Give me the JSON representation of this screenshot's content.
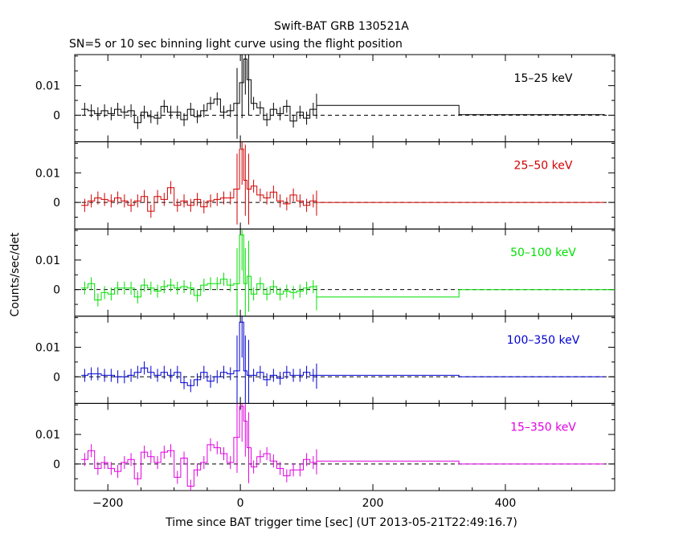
{
  "chart_data": {
    "type": "line",
    "title": "Swift-BAT GRB 130521A",
    "subtitle": "SN=5 or 10 sec binning light curve using the flight position",
    "xlabel": "Time since BAT trigger time [sec] (UT 2013-05-21T22:49:16.7)",
    "ylabel": "Counts/sec/det",
    "xlim": [
      -250,
      565
    ],
    "x_ticks": [
      -200,
      0,
      200,
      400
    ],
    "x_tick_labels": [
      "−200",
      "0",
      "200",
      "400"
    ],
    "grid": false,
    "panels": [
      {
        "band": "15–25 keV",
        "color": "#000000",
        "ylim": [
          -0.009,
          0.0205
        ],
        "y_ticks": [
          0,
          0.01
        ],
        "y_tick_labels": [
          "0",
          "0.01"
        ],
        "points": [
          [
            -235,
            0.002
          ],
          [
            -225,
            0.0015
          ],
          [
            -215,
            0.0005
          ],
          [
            -205,
            0.0015
          ],
          [
            -195,
            0.0005
          ],
          [
            -185,
            0.002
          ],
          [
            -175,
            0.001
          ],
          [
            -165,
            0.0015
          ],
          [
            -155,
            -0.0025
          ],
          [
            -145,
            0.001
          ],
          [
            -135,
            -0.0005
          ],
          [
            -125,
            -0.001
          ],
          [
            -115,
            0.003
          ],
          [
            -105,
            0.001
          ],
          [
            -95,
            0.001
          ],
          [
            -85,
            -0.0015
          ],
          [
            -75,
            0.002
          ],
          [
            -65,
            -0.0005
          ],
          [
            -55,
            0.0015
          ],
          [
            -45,
            0.004
          ],
          [
            -35,
            0.0055
          ],
          [
            -25,
            0.001
          ],
          [
            -15,
            0.0015
          ],
          [
            -5,
            0.004
          ],
          [
            2.5,
            0.011
          ],
          [
            7.5,
            0.019
          ],
          [
            12.5,
            0.012
          ],
          [
            20,
            0.004
          ],
          [
            30,
            0.0025
          ],
          [
            40,
            -0.0015
          ],
          [
            50,
            0.002
          ],
          [
            60,
            0.0005
          ],
          [
            70,
            0.003
          ],
          [
            80,
            -0.002
          ],
          [
            90,
            0.001
          ],
          [
            100,
            -0.001
          ],
          [
            110,
            0.002
          ]
        ],
        "long_bins": [
          [
            115,
            330,
            0.0033
          ],
          [
            330,
            550,
            0.0002
          ]
        ]
      },
      {
        "band": "25–50 keV",
        "color": "#d00000",
        "ylim": [
          -0.009,
          0.0205
        ],
        "y_ticks": [
          0,
          0.01
        ],
        "y_tick_labels": [
          "0",
          "0.01"
        ],
        "points": [
          [
            -235,
            -0.001
          ],
          [
            -225,
            0.0005
          ],
          [
            -215,
            0.0015
          ],
          [
            -205,
            0.001
          ],
          [
            -195,
            0.0005
          ],
          [
            -185,
            0.0015
          ],
          [
            -175,
            0.0005
          ],
          [
            -165,
            -0.001
          ],
          [
            -155,
            0.0005
          ],
          [
            -145,
            0.002
          ],
          [
            -135,
            -0.003
          ],
          [
            -125,
            0.002
          ],
          [
            -115,
            0.001
          ],
          [
            -105,
            0.005
          ],
          [
            -95,
            -0.001
          ],
          [
            -85,
            0.0005
          ],
          [
            -75,
            -0.001
          ],
          [
            -65,
            0.001
          ],
          [
            -55,
            -0.0015
          ],
          [
            -45,
            0.0005
          ],
          [
            -35,
            0.001
          ],
          [
            -25,
            0.0015
          ],
          [
            -15,
            0.0015
          ],
          [
            -5,
            0.0045
          ],
          [
            2.5,
            0.018
          ],
          [
            7.5,
            0.0075
          ],
          [
            12.5,
            0.0045
          ],
          [
            20,
            0.0055
          ],
          [
            30,
            0.0025
          ],
          [
            40,
            0.0015
          ],
          [
            50,
            0.0035
          ],
          [
            60,
            0.0005
          ],
          [
            70,
            -0.0005
          ],
          [
            80,
            0.0025
          ],
          [
            90,
            0.0005
          ],
          [
            100,
            -0.001
          ],
          [
            110,
            0.0005
          ]
        ],
        "long_bins": [
          [
            115,
            330,
            0.0
          ],
          [
            330,
            550,
            0.0
          ]
        ]
      },
      {
        "band": "50–100 keV",
        "color": "#00e000",
        "ylim": [
          -0.009,
          0.0205
        ],
        "y_ticks": [
          0,
          0.01
        ],
        "y_tick_labels": [
          "0",
          "0.01"
        ],
        "points": [
          [
            -235,
            0.0005
          ],
          [
            -225,
            0.002
          ],
          [
            -215,
            -0.0035
          ],
          [
            -205,
            -0.001
          ],
          [
            -195,
            -0.0015
          ],
          [
            -185,
            0.0005
          ],
          [
            -175,
            0.0005
          ],
          [
            -165,
            0.0005
          ],
          [
            -155,
            -0.0025
          ],
          [
            -145,
            0.0015
          ],
          [
            -135,
            0.0005
          ],
          [
            -125,
            -0.0005
          ],
          [
            -115,
            0.001
          ],
          [
            -105,
            0.0015
          ],
          [
            -95,
            0.0005
          ],
          [
            -85,
            0.001
          ],
          [
            -75,
            0.0005
          ],
          [
            -65,
            -0.002
          ],
          [
            -55,
            0.0015
          ],
          [
            -45,
            0.002
          ],
          [
            -35,
            0.002
          ],
          [
            -25,
            0.0035
          ],
          [
            -15,
            0.0015
          ],
          [
            -5,
            0.002
          ],
          [
            2.5,
            0.0185
          ],
          [
            7.5,
            0.002
          ],
          [
            12.5,
            0.0045
          ],
          [
            20,
            -0.0015
          ],
          [
            30,
            0.002
          ],
          [
            40,
            -0.0015
          ],
          [
            50,
            0.001
          ],
          [
            60,
            -0.0015
          ],
          [
            70,
            -0.0005
          ],
          [
            80,
            -0.001
          ],
          [
            90,
            -0.0005
          ],
          [
            100,
            0.0005
          ],
          [
            110,
            0.001
          ]
        ],
        "long_bins": [
          [
            115,
            330,
            -0.0025
          ],
          [
            330,
            565,
            0.0
          ]
        ]
      },
      {
        "band": "100–350 keV",
        "color": "#0000d0",
        "ylim": [
          -0.009,
          0.0205
        ],
        "y_ticks": [
          0,
          0.01
        ],
        "y_tick_labels": [
          "0",
          "0.01"
        ],
        "points": [
          [
            -235,
            0.0005
          ],
          [
            -225,
            0.001
          ],
          [
            -215,
            0.001
          ],
          [
            -205,
            0.0005
          ],
          [
            -195,
            0.0005
          ],
          [
            -185,
            0.0
          ],
          [
            -175,
            0.0
          ],
          [
            -165,
            0.0005
          ],
          [
            -155,
            0.0015
          ],
          [
            -145,
            0.003
          ],
          [
            -135,
            0.0015
          ],
          [
            -125,
            0.0005
          ],
          [
            -115,
            0.0015
          ],
          [
            -105,
            0.0005
          ],
          [
            -95,
            0.0015
          ],
          [
            -85,
            -0.002
          ],
          [
            -75,
            -0.003
          ],
          [
            -65,
            -0.001
          ],
          [
            -55,
            0.0015
          ],
          [
            -45,
            -0.0015
          ],
          [
            -35,
            0.0
          ],
          [
            -25,
            0.0015
          ],
          [
            -15,
            0.001
          ],
          [
            -5,
            0.002
          ],
          [
            2.5,
            0.0185
          ],
          [
            7.5,
            0.002
          ],
          [
            12.5,
            0.0005
          ],
          [
            20,
            0.0005
          ],
          [
            30,
            0.0015
          ],
          [
            40,
            -0.001
          ],
          [
            50,
            0.0005
          ],
          [
            60,
            -0.0005
          ],
          [
            70,
            0.0015
          ],
          [
            80,
            0.0005
          ],
          [
            90,
            0.0005
          ],
          [
            100,
            0.0015
          ],
          [
            110,
            0.0005
          ]
        ],
        "long_bins": [
          [
            115,
            330,
            0.0005
          ],
          [
            330,
            550,
            0.0
          ]
        ]
      },
      {
        "band": "15–350 keV",
        "color": "#e000e0",
        "ylim": [
          -0.009,
          0.0205
        ],
        "y_ticks": [
          0,
          0.01
        ],
        "y_tick_labels": [
          "0",
          "0.01"
        ],
        "points": [
          [
            -235,
            0.0015
          ],
          [
            -225,
            0.0045
          ],
          [
            -215,
            -0.0015
          ],
          [
            -205,
            0.0005
          ],
          [
            -195,
            -0.0015
          ],
          [
            -185,
            -0.0025
          ],
          [
            -175,
            0.0005
          ],
          [
            -165,
            0.0015
          ],
          [
            -155,
            -0.005
          ],
          [
            -145,
            0.004
          ],
          [
            -135,
            0.0025
          ],
          [
            -125,
            0.0005
          ],
          [
            -115,
            0.004
          ],
          [
            -105,
            0.0045
          ],
          [
            -95,
            -0.0045
          ],
          [
            -85,
            0.002
          ],
          [
            -75,
            -0.0075
          ],
          [
            -65,
            -0.002
          ],
          [
            -55,
            0.0005
          ],
          [
            -45,
            0.0065
          ],
          [
            -35,
            0.0055
          ],
          [
            -25,
            0.0035
          ],
          [
            -15,
            0.0005
          ],
          [
            -5,
            0.009
          ],
          [
            2.5,
            0.0195
          ],
          [
            7.5,
            0.0145
          ],
          [
            12.5,
            0.0055
          ],
          [
            20,
            -0.001
          ],
          [
            30,
            0.0025
          ],
          [
            40,
            0.0035
          ],
          [
            50,
            0.001
          ],
          [
            60,
            -0.0015
          ],
          [
            70,
            -0.004
          ],
          [
            80,
            -0.002
          ],
          [
            90,
            -0.002
          ],
          [
            100,
            0.0015
          ],
          [
            110,
            0.0005
          ]
        ],
        "long_bins": [
          [
            115,
            330,
            0.001
          ],
          [
            330,
            550,
            0.0
          ]
        ]
      }
    ]
  }
}
